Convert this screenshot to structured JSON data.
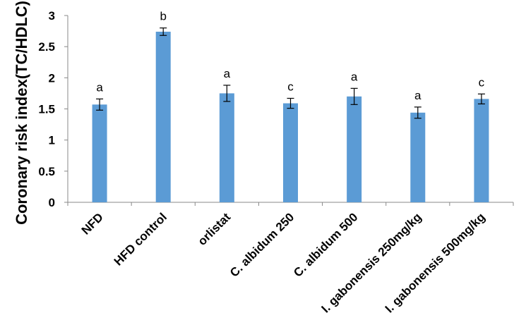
{
  "chart_data": {
    "type": "bar",
    "title": "",
    "xlabel": "",
    "ylabel": "Coronary risk index(TC/HDLC)",
    "ylim": [
      0,
      3
    ],
    "yticks": [
      "0",
      "0.5",
      "1",
      "1.5",
      "2",
      "2.5",
      "3"
    ],
    "grid": false,
    "legend": "none",
    "bar_color": "#5B9BD5",
    "categories": [
      "NFD",
      "HFD control",
      "orlistat",
      "C. albidum 250",
      "C. albidum 500",
      "I. gabonensis 250mg/kg",
      "I. gabonensis 500mg/kg"
    ],
    "series": [
      {
        "values": [
          1.57,
          2.74,
          1.75,
          1.59,
          1.7,
          1.44,
          1.66
        ],
        "errors": [
          0.09,
          0.06,
          0.13,
          0.08,
          0.13,
          0.09,
          0.08
        ],
        "labels": [
          "a",
          "b",
          "a",
          "c",
          "a",
          "a",
          "c"
        ]
      }
    ]
  }
}
